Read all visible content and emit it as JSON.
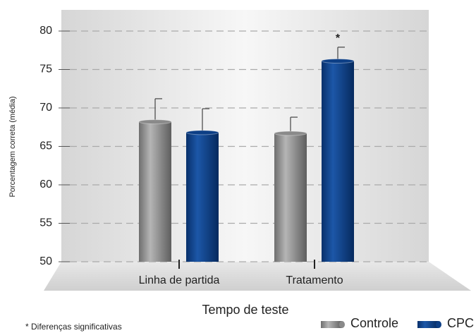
{
  "chart_data": {
    "type": "bar",
    "xlabel": "Tempo de teste",
    "ylabel": "Porcentagem correta (média)",
    "categories": [
      "Linha de partida",
      "Tratamento"
    ],
    "series": [
      {
        "name": "Controle",
        "color": "#8a8a8a",
        "values": [
          68.2,
          66.7
        ],
        "errors": [
          3.0,
          2.1
        ]
      },
      {
        "name": "CPC",
        "color": "#0d3f86",
        "values": [
          66.8,
          76.1
        ],
        "errors": [
          3.1,
          1.8
        ]
      }
    ],
    "annotation": "*",
    "footnote": "* Diferenças significativas",
    "ylim": [
      50,
      80
    ],
    "yticks": [
      50,
      55,
      60,
      65,
      70,
      75,
      80
    ],
    "grid": true,
    "legend": "bottom-right"
  }
}
